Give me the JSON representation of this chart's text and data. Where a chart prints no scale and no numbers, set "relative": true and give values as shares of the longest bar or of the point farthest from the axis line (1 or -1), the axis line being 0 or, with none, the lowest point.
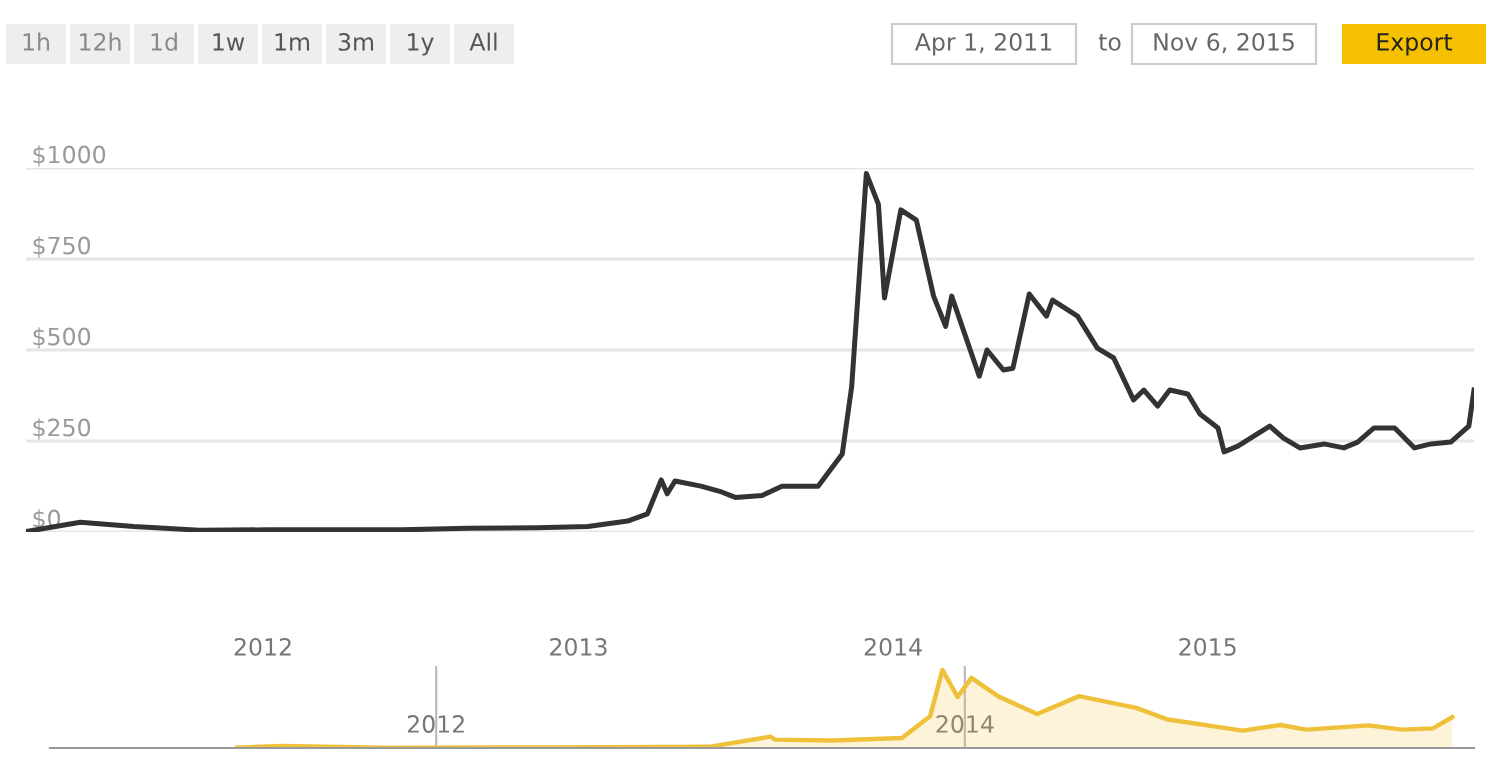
{
  "chart_data": [
    {
      "type": "line",
      "annotations": [
        "1h",
        "12h",
        "1d",
        "1w",
        "1m",
        "3m",
        "1y",
        "All",
        "Apr 1, 2011",
        "to",
        "Nov 6, 2015",
        "Export"
      ],
      "x": [
        "2011-04-01",
        "2011-06-03",
        "2011-08-04",
        "2011-10-19",
        "2012-01-05",
        "2012-06-10",
        "2012-08-26",
        "2012-11-14",
        "2013-01-12",
        "2013-02-27",
        "2013-03-22",
        "2013-04-07",
        "2013-04-14",
        "2013-04-23",
        "2013-05-23",
        "2013-06-16",
        "2013-07-02",
        "2013-08-02",
        "2013-08-25",
        "2013-10-06",
        "2013-11-03",
        "2013-11-14",
        "2013-12-01",
        "2013-12-15",
        "2013-12-22",
        "2014-01-10",
        "2014-01-28",
        "2014-02-17",
        "2014-03-03",
        "2014-03-10",
        "2014-04-11",
        "2014-04-20",
        "2014-05-09",
        "2014-05-20",
        "2014-06-08",
        "2014-06-28",
        "2014-07-05",
        "2014-08-03",
        "2014-08-26",
        "2014-09-14",
        "2014-10-07",
        "2014-10-19",
        "2014-11-04",
        "2014-11-18",
        "2014-12-09",
        "2014-12-23",
        "2015-01-13",
        "2015-01-20",
        "2015-02-05",
        "2015-03-14",
        "2015-03-30",
        "2015-04-18",
        "2015-05-16",
        "2015-06-08",
        "2015-06-24",
        "2015-07-13",
        "2015-08-06",
        "2015-08-29",
        "2015-09-17",
        "2015-10-10",
        "2015-10-31",
        "2015-11-06"
      ],
      "series": [
        {
          "color": "#333333",
          "values": [
            1,
            27,
            15,
            5,
            6,
            6,
            10,
            12,
            15,
            30,
            50,
            143,
            105,
            140,
            126,
            110,
            95,
            100,
            126,
            126,
            214,
            400,
            985,
            900,
            643,
            885,
            857,
            648,
            565,
            648,
            428,
            500,
            445,
            450,
            654,
            593,
            637,
            593,
            505,
            478,
            363,
            390,
            346,
            390,
            379,
            324,
            286,
            220,
            236,
            291,
            258,
            231,
            242,
            231,
            247,
            286,
            286,
            231,
            242,
            247,
            291,
            390
          ]
        }
      ],
      "xlim": [
        "2011-04-01",
        "2015-11-06"
      ],
      "xticks": [
        {
          "value": "2012-01-01",
          "label": "2012"
        },
        {
          "value": "2013-01-01",
          "label": "2013"
        },
        {
          "value": "2014-01-01",
          "label": "2014"
        },
        {
          "value": "2015-01-01",
          "label": "2015"
        }
      ],
      "ylim": [
        0,
        1000
      ],
      "yticks": [
        {
          "value": 0,
          "label": "$0"
        },
        {
          "value": 250,
          "label": "$250"
        },
        {
          "value": 500,
          "label": "$500"
        },
        {
          "value": 750,
          "label": "$750"
        },
        {
          "value": 1000,
          "label": "$1000"
        }
      ],
      "grid": "y",
      "legend": false,
      "marker": "none",
      "line_style": "solid"
    },
    {
      "type": "area",
      "relative": true,
      "x": [
        "2011-04-01",
        "2011-06-03",
        "2011-10-19",
        "2012-06-10",
        "2013-01-12",
        "2013-04-07",
        "2013-04-14",
        "2013-07-02",
        "2013-10-06",
        "2013-11-14",
        "2013-12-01",
        "2013-12-22",
        "2014-01-10",
        "2014-02-17",
        "2014-04-11",
        "2014-06-08",
        "2014-08-26",
        "2014-10-07",
        "2015-01-20",
        "2015-03-14",
        "2015-04-18",
        "2015-07-13",
        "2015-08-29",
        "2015-10-10",
        "2015-11-06"
      ],
      "series": [
        {
          "color": "#efc13a",
          "values": [
            0.005,
            0.027,
            0.005,
            0.006,
            0.015,
            0.145,
            0.107,
            0.096,
            0.128,
            0.406,
            1,
            0.653,
            0.898,
            0.658,
            0.435,
            0.664,
            0.513,
            0.369,
            0.223,
            0.295,
            0.235,
            0.29,
            0.235,
            0.251,
            0.396
          ]
        }
      ],
      "xlim": [
        "2010-07-16",
        "2015-12-06"
      ],
      "xticks": [
        {
          "value": "2012-01-01",
          "label": "2012"
        },
        {
          "value": "2014-01-01",
          "label": "2014"
        }
      ],
      "grid": "x",
      "legend": false
    }
  ]
}
